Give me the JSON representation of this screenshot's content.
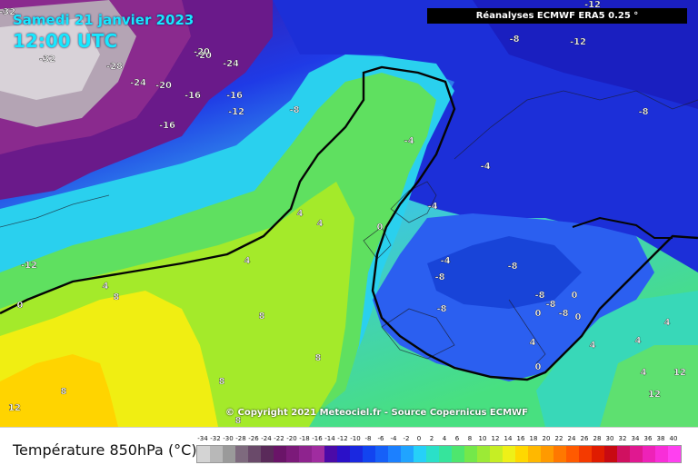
{
  "map": {
    "date_title": "Samedi 21 janvier 2023",
    "time_title": "12:00 UTC",
    "source_label": "Réanalyses ECMWF ERA5 0.25 °",
    "copyright": "© Copyright 2021 Meteociel.fr - Source Copernicus ECMWF",
    "contour_labels": [
      "-32",
      "-32",
      "-28",
      "-24",
      "-20",
      "-20",
      "-24",
      "-20",
      "-16",
      "-16",
      "-12",
      "-16",
      "-8",
      "-12",
      "-8",
      "-12",
      "-8",
      "-4",
      "-4",
      "-4",
      "-8",
      "-8",
      "-8",
      "-8",
      "-8",
      "-8",
      "-12",
      "0",
      "0",
      "0",
      "0",
      "0",
      "0",
      "-4",
      "4",
      "4",
      "4",
      "4",
      "4",
      "4",
      "4",
      "4",
      "4",
      "8",
      "8",
      "8",
      "8",
      "8",
      "8",
      "12",
      "12",
      "12"
    ]
  },
  "legend": {
    "title": "Température 850hPa (°C)",
    "unit": "°C",
    "scale_values": [
      "-34",
      "-32",
      "-30",
      "-28",
      "-26",
      "-24",
      "-22",
      "-20",
      "-18",
      "-16",
      "-14",
      "-12",
      "-10",
      "-8",
      "-6",
      "-4",
      "-2",
      "0",
      "2",
      "4",
      "6",
      "8",
      "10",
      "12",
      "14",
      "16",
      "18",
      "20",
      "22",
      "24",
      "26",
      "28",
      "30",
      "32",
      "34",
      "36",
      "38",
      "40"
    ],
    "scale_colors": [
      "#d4d4d4",
      "#b8b8b8",
      "#9a9a9a",
      "#7e6a7e",
      "#6a4a6a",
      "#5a2a5a",
      "#6a1468",
      "#7c1a7a",
      "#8e238e",
      "#a02ca0",
      "#4b0aa8",
      "#2b10c8",
      "#1a28e0",
      "#1244f0",
      "#1660f8",
      "#1c80ff",
      "#20a4ff",
      "#26d0f8",
      "#2ae0c8",
      "#36e49c",
      "#4ee66e",
      "#74e84a",
      "#9cea36",
      "#c6ee24",
      "#eef018",
      "#ffd800",
      "#ffb800",
      "#ff9a00",
      "#ff7800",
      "#ff5a00",
      "#f43a00",
      "#e01c00",
      "#c80a12",
      "#d01060",
      "#e01890",
      "#ee22b8",
      "#f82ed8",
      "#ff40f0"
    ]
  }
}
